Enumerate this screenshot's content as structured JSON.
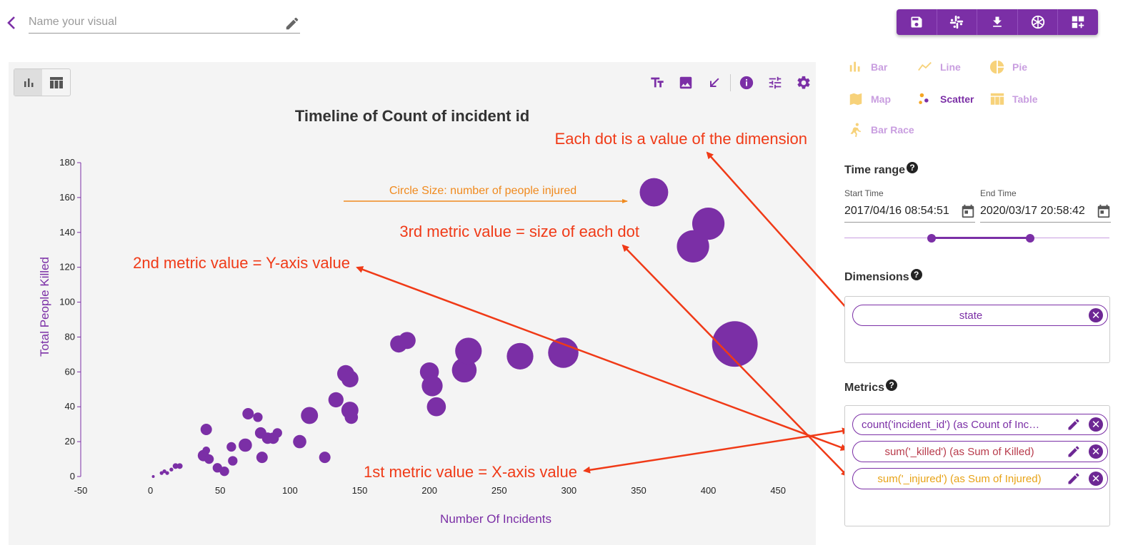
{
  "header": {
    "name_placeholder": "Name your visual",
    "toolbar": [
      "save-icon",
      "slack-icon",
      "download-icon",
      "share-icon",
      "add-dashboard-icon"
    ]
  },
  "colors": {
    "accent": "#7b2fa6",
    "accent_light": "#c99ee0",
    "annotation": "#f03a17",
    "annotation_orange": "#f08a1e",
    "chart_bg": "#f4f4f4",
    "injured_text": "#e8a317",
    "killed_text": "#b83a4b"
  },
  "chart_types": [
    {
      "label": "Bar",
      "icon": "bar-chart-icon",
      "active": false
    },
    {
      "label": "Line",
      "icon": "line-chart-icon",
      "active": false
    },
    {
      "label": "Pie",
      "icon": "pie-chart-icon",
      "active": false
    },
    {
      "label": "Map",
      "icon": "map-icon",
      "active": false
    },
    {
      "label": "Scatter",
      "icon": "scatter-chart-icon",
      "active": true
    },
    {
      "label": "Table",
      "icon": "table-icon",
      "active": false
    },
    {
      "label": "Bar Race",
      "icon": "bar-race-icon",
      "active": false
    }
  ],
  "time_range": {
    "title": "Time range",
    "start_label": "Start Time",
    "start_value": "2017/04/16 08:54:51",
    "end_label": "End Time",
    "end_value": "2020/03/17 20:58:42",
    "slider_range": [
      0.33,
      0.7
    ]
  },
  "dimensions": {
    "title": "Dimensions",
    "items": [
      {
        "label": "state"
      }
    ]
  },
  "metrics": {
    "title": "Metrics",
    "items": [
      {
        "label": "count('incident_id') (as Count of Inc…"
      },
      {
        "label": "sum('_killed') (as Sum of Killed)"
      },
      {
        "label": "sum('_injured') (as Sum of Injured)"
      }
    ]
  },
  "annotations": {
    "dot_value": "Each dot is a value of the dimension",
    "circle_size": "Circle Size: number of people injured",
    "third_metric": "3rd metric value = size of each dot",
    "second_metric": "2nd metric value = Y-axis value",
    "first_metric": "1st metric value = X-axis value"
  },
  "chart_data": {
    "type": "scatter",
    "title": "Timeline of Count of incident id",
    "xlabel": "Number Of Incidents",
    "ylabel": "Total People Killed",
    "xlim": [
      -50,
      475
    ],
    "ylim": [
      0,
      180
    ],
    "x_ticks": [
      -50,
      0,
      50,
      100,
      150,
      200,
      250,
      300,
      350,
      400,
      450
    ],
    "y_ticks": [
      0,
      20,
      40,
      60,
      80,
      100,
      120,
      140,
      160,
      180
    ],
    "size_metric": "Sum of Injured",
    "points": [
      {
        "x": 2,
        "y": 0,
        "size": 1
      },
      {
        "x": 8,
        "y": 2,
        "size": 2
      },
      {
        "x": 10,
        "y": 3,
        "size": 2
      },
      {
        "x": 12,
        "y": 2,
        "size": 2
      },
      {
        "x": 15,
        "y": 4,
        "size": 2
      },
      {
        "x": 18,
        "y": 6,
        "size": 3
      },
      {
        "x": 21,
        "y": 6,
        "size": 3
      },
      {
        "x": 38,
        "y": 12,
        "size": 6
      },
      {
        "x": 40,
        "y": 15,
        "size": 4
      },
      {
        "x": 42,
        "y": 10,
        "size": 5
      },
      {
        "x": 40,
        "y": 27,
        "size": 6
      },
      {
        "x": 48,
        "y": 5,
        "size": 5
      },
      {
        "x": 53,
        "y": 3,
        "size": 5
      },
      {
        "x": 59,
        "y": 9,
        "size": 5
      },
      {
        "x": 58,
        "y": 17,
        "size": 5
      },
      {
        "x": 68,
        "y": 18,
        "size": 7
      },
      {
        "x": 70,
        "y": 36,
        "size": 6
      },
      {
        "x": 77,
        "y": 34,
        "size": 5
      },
      {
        "x": 79,
        "y": 25,
        "size": 6
      },
      {
        "x": 80,
        "y": 11,
        "size": 6
      },
      {
        "x": 84,
        "y": 22,
        "size": 6
      },
      {
        "x": 88,
        "y": 22,
        "size": 6
      },
      {
        "x": 91,
        "y": 25,
        "size": 5
      },
      {
        "x": 107,
        "y": 20,
        "size": 7
      },
      {
        "x": 114,
        "y": 35,
        "size": 9
      },
      {
        "x": 125,
        "y": 11,
        "size": 6
      },
      {
        "x": 133,
        "y": 44,
        "size": 8
      },
      {
        "x": 140,
        "y": 59,
        "size": 9
      },
      {
        "x": 143,
        "y": 56,
        "size": 9
      },
      {
        "x": 143,
        "y": 38,
        "size": 9
      },
      {
        "x": 144,
        "y": 34,
        "size": 7
      },
      {
        "x": 178,
        "y": 76,
        "size": 9
      },
      {
        "x": 184,
        "y": 78,
        "size": 9
      },
      {
        "x": 200,
        "y": 60,
        "size": 10
      },
      {
        "x": 202,
        "y": 52,
        "size": 11
      },
      {
        "x": 205,
        "y": 40,
        "size": 10
      },
      {
        "x": 225,
        "y": 61,
        "size": 13
      },
      {
        "x": 228,
        "y": 72,
        "size": 14
      },
      {
        "x": 265,
        "y": 69,
        "size": 14
      },
      {
        "x": 296,
        "y": 71,
        "size": 16
      },
      {
        "x": 361,
        "y": 163,
        "size": 15
      },
      {
        "x": 389,
        "y": 132,
        "size": 17
      },
      {
        "x": 400,
        "y": 145,
        "size": 17
      },
      {
        "x": 419,
        "y": 76,
        "size": 24
      }
    ]
  }
}
